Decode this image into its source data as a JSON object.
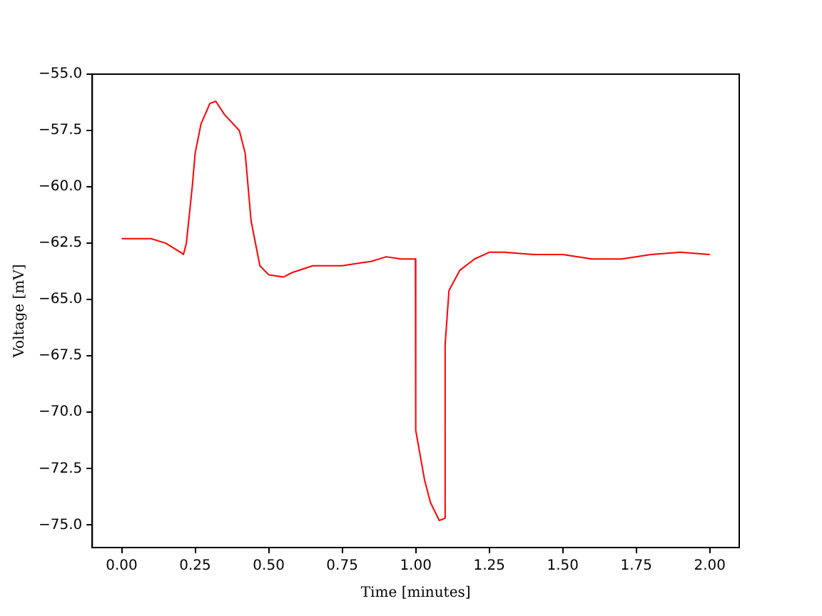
{
  "chart_data": {
    "type": "line",
    "xlabel": "Time [minutes]",
    "ylabel": "Voltage [mV]",
    "xlim": [
      -0.1,
      2.1
    ],
    "xticks": [
      {
        "value": 0,
        "label": "0.00"
      },
      {
        "value": 0.25,
        "label": "0.25"
      },
      {
        "value": 0.5,
        "label": "0.50"
      },
      {
        "value": 0.75,
        "label": "0.75"
      },
      {
        "value": 1,
        "label": "1.00"
      },
      {
        "value": 1.25,
        "label": "1.25"
      },
      {
        "value": 1.5,
        "label": "1.50"
      },
      {
        "value": 1.75,
        "label": "1.75"
      },
      {
        "value": 2,
        "label": "2.00"
      }
    ],
    "ylim": [
      -76,
      -55
    ],
    "yticks": [
      {
        "value": -75,
        "label": "−75.0"
      },
      {
        "value": -72.5,
        "label": "−72.5"
      },
      {
        "value": -70,
        "label": "−70.0"
      },
      {
        "value": -67.5,
        "label": "−67.5"
      },
      {
        "value": -65,
        "label": "−65.0"
      },
      {
        "value": -62.5,
        "label": "−62.5"
      },
      {
        "value": -60,
        "label": "−60.0"
      },
      {
        "value": -57.5,
        "label": "−57.5"
      },
      {
        "value": -55,
        "label": "−55.0"
      }
    ],
    "grid": false,
    "legend": false,
    "marker": "none",
    "line_style": "solid",
    "series": [
      {
        "color": "#ff0000",
        "x": [
          0,
          0.05,
          0.1,
          0.15,
          0.2,
          0.21,
          0.22,
          0.24,
          0.25,
          0.27,
          0.3,
          0.32,
          0.35,
          0.4,
          0.42,
          0.44,
          0.47,
          0.5,
          0.55,
          0.58,
          0.65,
          0.75,
          0.85,
          0.9,
          0.95,
          0.999,
          1.0,
          1.03,
          1.05,
          1.08,
          1.1,
          1.1,
          1.113,
          1.15,
          1.2,
          1.25,
          1.3,
          1.4,
          1.5,
          1.6,
          1.7,
          1.8,
          1.9,
          2.0
        ],
        "values": [
          -62.3,
          -62.3,
          -62.3,
          -62.5,
          -62.9,
          -63.0,
          -62.5,
          -60.0,
          -58.5,
          -57.2,
          -56.3,
          -56.2,
          -56.8,
          -57.5,
          -58.5,
          -61.5,
          -63.5,
          -63.9,
          -64.0,
          -63.8,
          -63.5,
          -63.5,
          -63.3,
          -63.1,
          -63.2,
          -63.2,
          -70.8,
          -73.0,
          -74.0,
          -74.8,
          -74.7,
          -67.0,
          -64.6,
          -63.7,
          -63.2,
          -62.9,
          -62.9,
          -63.0,
          -63.0,
          -63.2,
          -63.2,
          -63.0,
          -62.9,
          -63.0
        ]
      }
    ]
  }
}
